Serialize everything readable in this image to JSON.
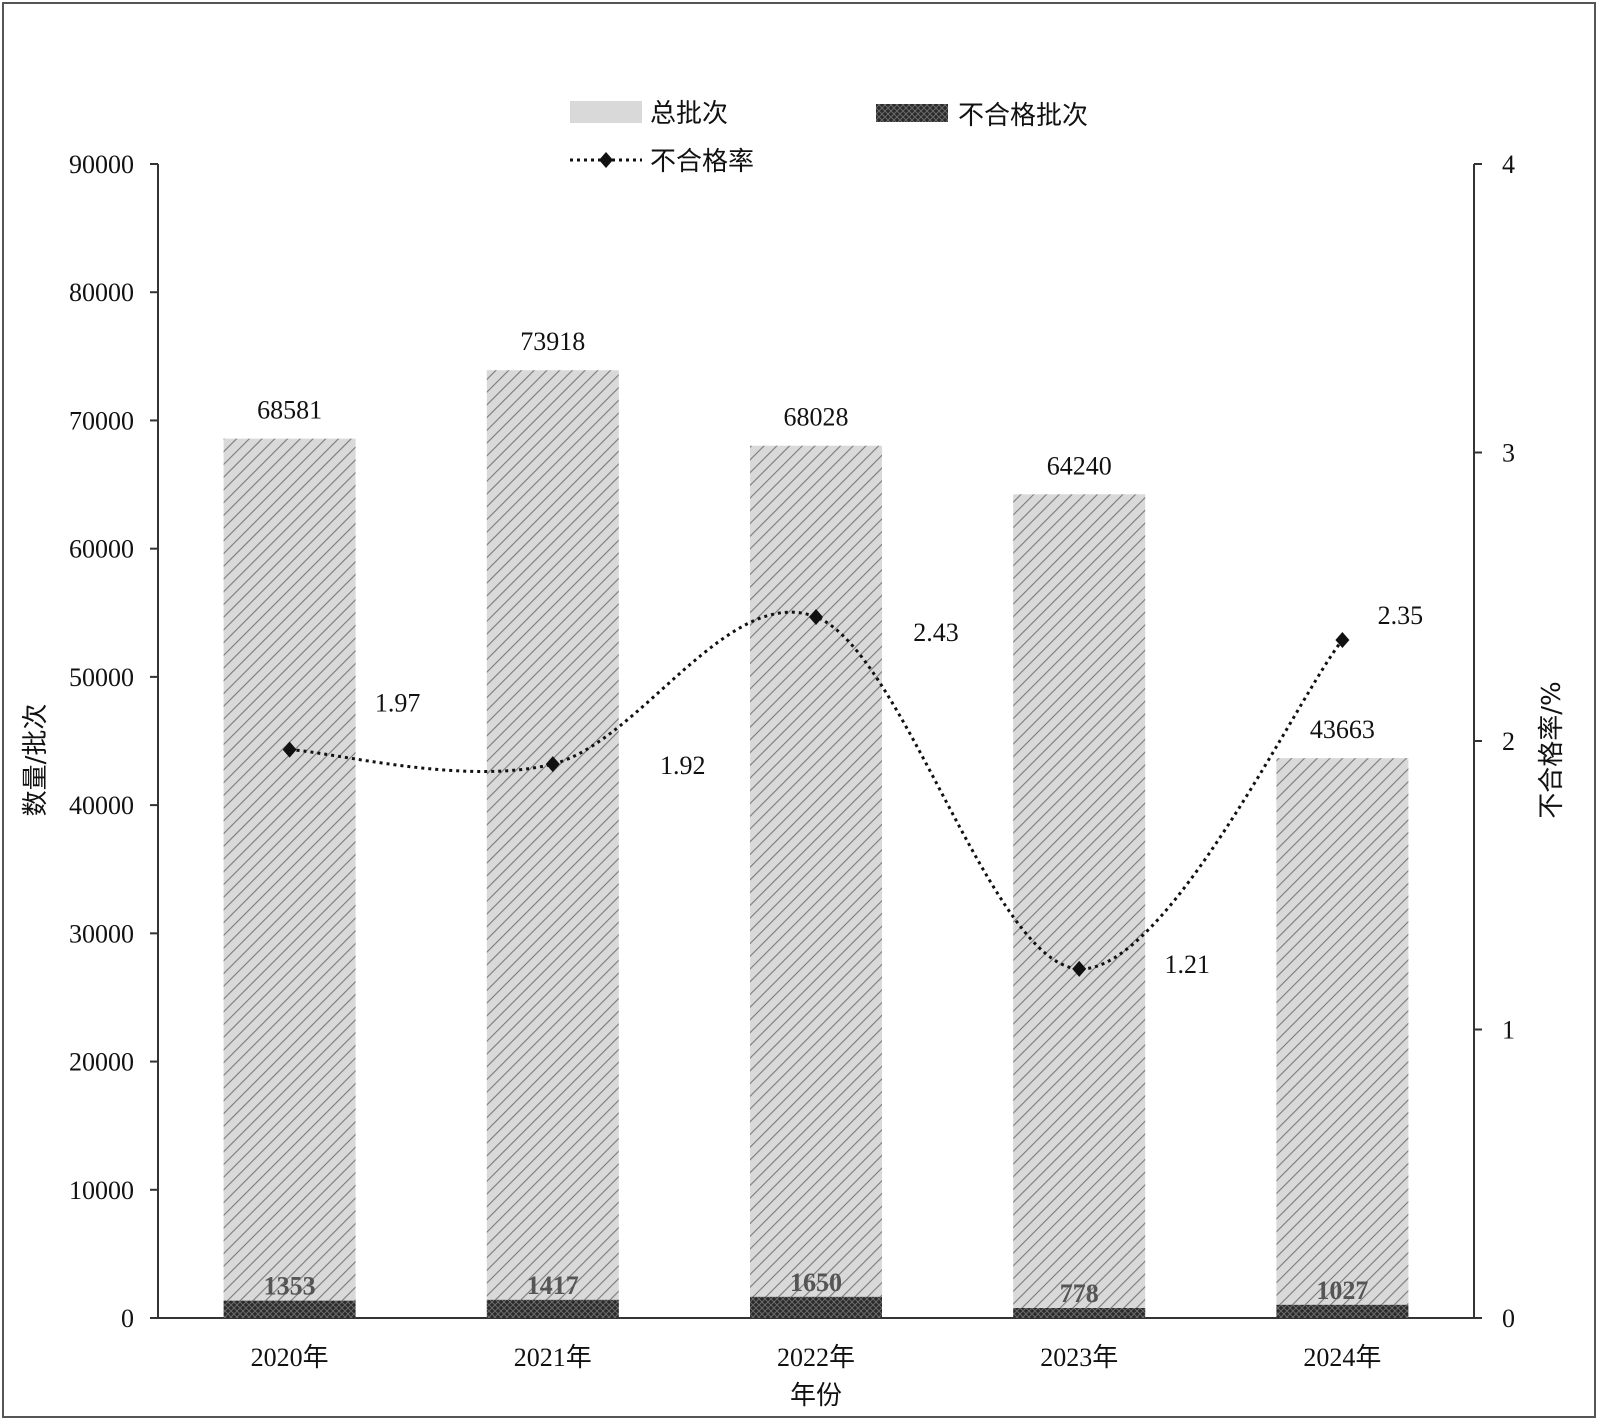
{
  "chart_data": {
    "type": "bar",
    "categories": [
      "2020年",
      "2021年",
      "2022年",
      "2023年",
      "2024年"
    ],
    "series": [
      {
        "name": "总批次",
        "type": "bar",
        "axis": "left",
        "values": [
          68581,
          73918,
          68028,
          64240,
          43663
        ]
      },
      {
        "name": "不合格批次",
        "type": "bar",
        "axis": "left",
        "values": [
          1353,
          1417,
          1650,
          778,
          1027
        ]
      },
      {
        "name": "不合格率",
        "type": "line",
        "axis": "right",
        "values": [
          1.97,
          1.92,
          2.43,
          1.21,
          2.35
        ]
      }
    ],
    "xlabel": "年份",
    "ylabel": "数量/批次",
    "y2label": "不合格率/%",
    "ylim": [
      0,
      90000
    ],
    "y2lim": [
      0,
      4
    ],
    "yticks": [
      "0",
      "10000",
      "20000",
      "30000",
      "40000",
      "50000",
      "60000",
      "70000",
      "80000",
      "90000"
    ],
    "y2ticks": [
      "0",
      "1",
      "2",
      "3",
      "4"
    ],
    "legend_position": "top-center",
    "grid": false,
    "colors": {
      "total_fill": "#d9d9d9",
      "total_hatch": "#7a7a7a",
      "fail_fill": "#2a2a2a",
      "line": "#111111",
      "axis": "#333333"
    }
  }
}
